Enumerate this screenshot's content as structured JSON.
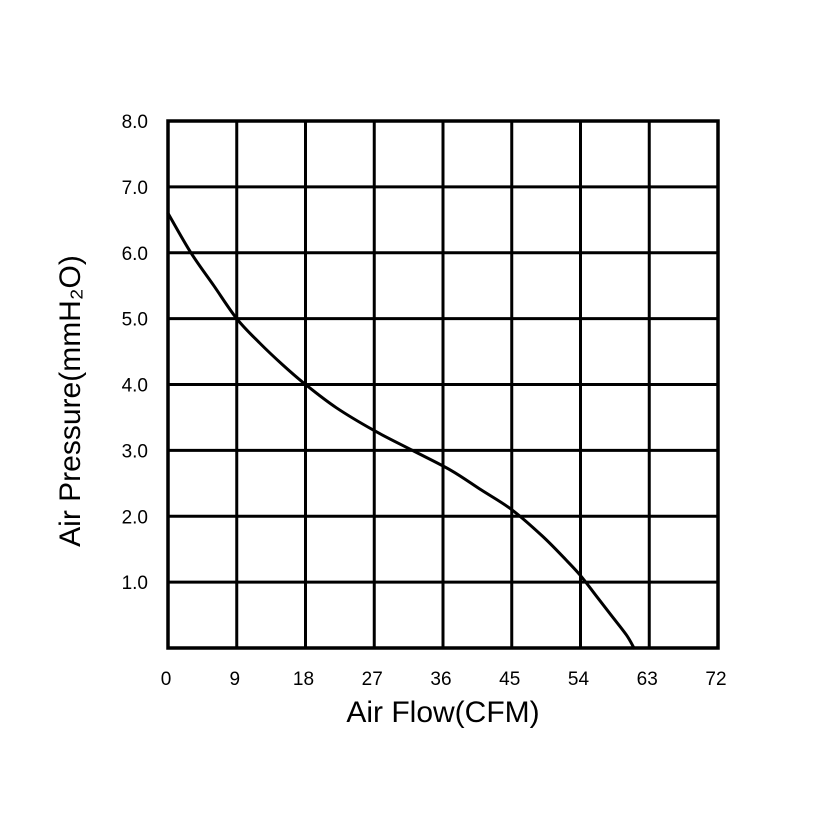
{
  "chart_data": {
    "type": "line",
    "title": "",
    "xlabel": "Air Flow(CFM)",
    "ylabel": "Air Pressure(mmH₂O)",
    "x_ticks": [
      "0",
      "9",
      "18",
      "27",
      "36",
      "45",
      "54",
      "63",
      "72"
    ],
    "y_ticks": [
      "1.0",
      "2.0",
      "3.0",
      "4.0",
      "5.0",
      "6.0",
      "7.0",
      "8.0"
    ],
    "xlim": [
      0,
      72
    ],
    "ylim": [
      0,
      8
    ],
    "grid": true,
    "legend": "none",
    "series": [
      {
        "color": "#000000",
        "x": [
          0,
          3,
          6,
          9,
          12,
          15,
          18,
          22,
          27,
          32,
          37,
          41,
          45,
          49,
          52,
          54,
          56,
          58,
          60,
          61
        ],
        "y": [
          6.6,
          6.0,
          5.5,
          5.0,
          4.63,
          4.3,
          4.0,
          3.65,
          3.3,
          3.0,
          2.7,
          2.4,
          2.1,
          1.7,
          1.35,
          1.1,
          0.8,
          0.5,
          0.2,
          0.0
        ]
      }
    ]
  }
}
